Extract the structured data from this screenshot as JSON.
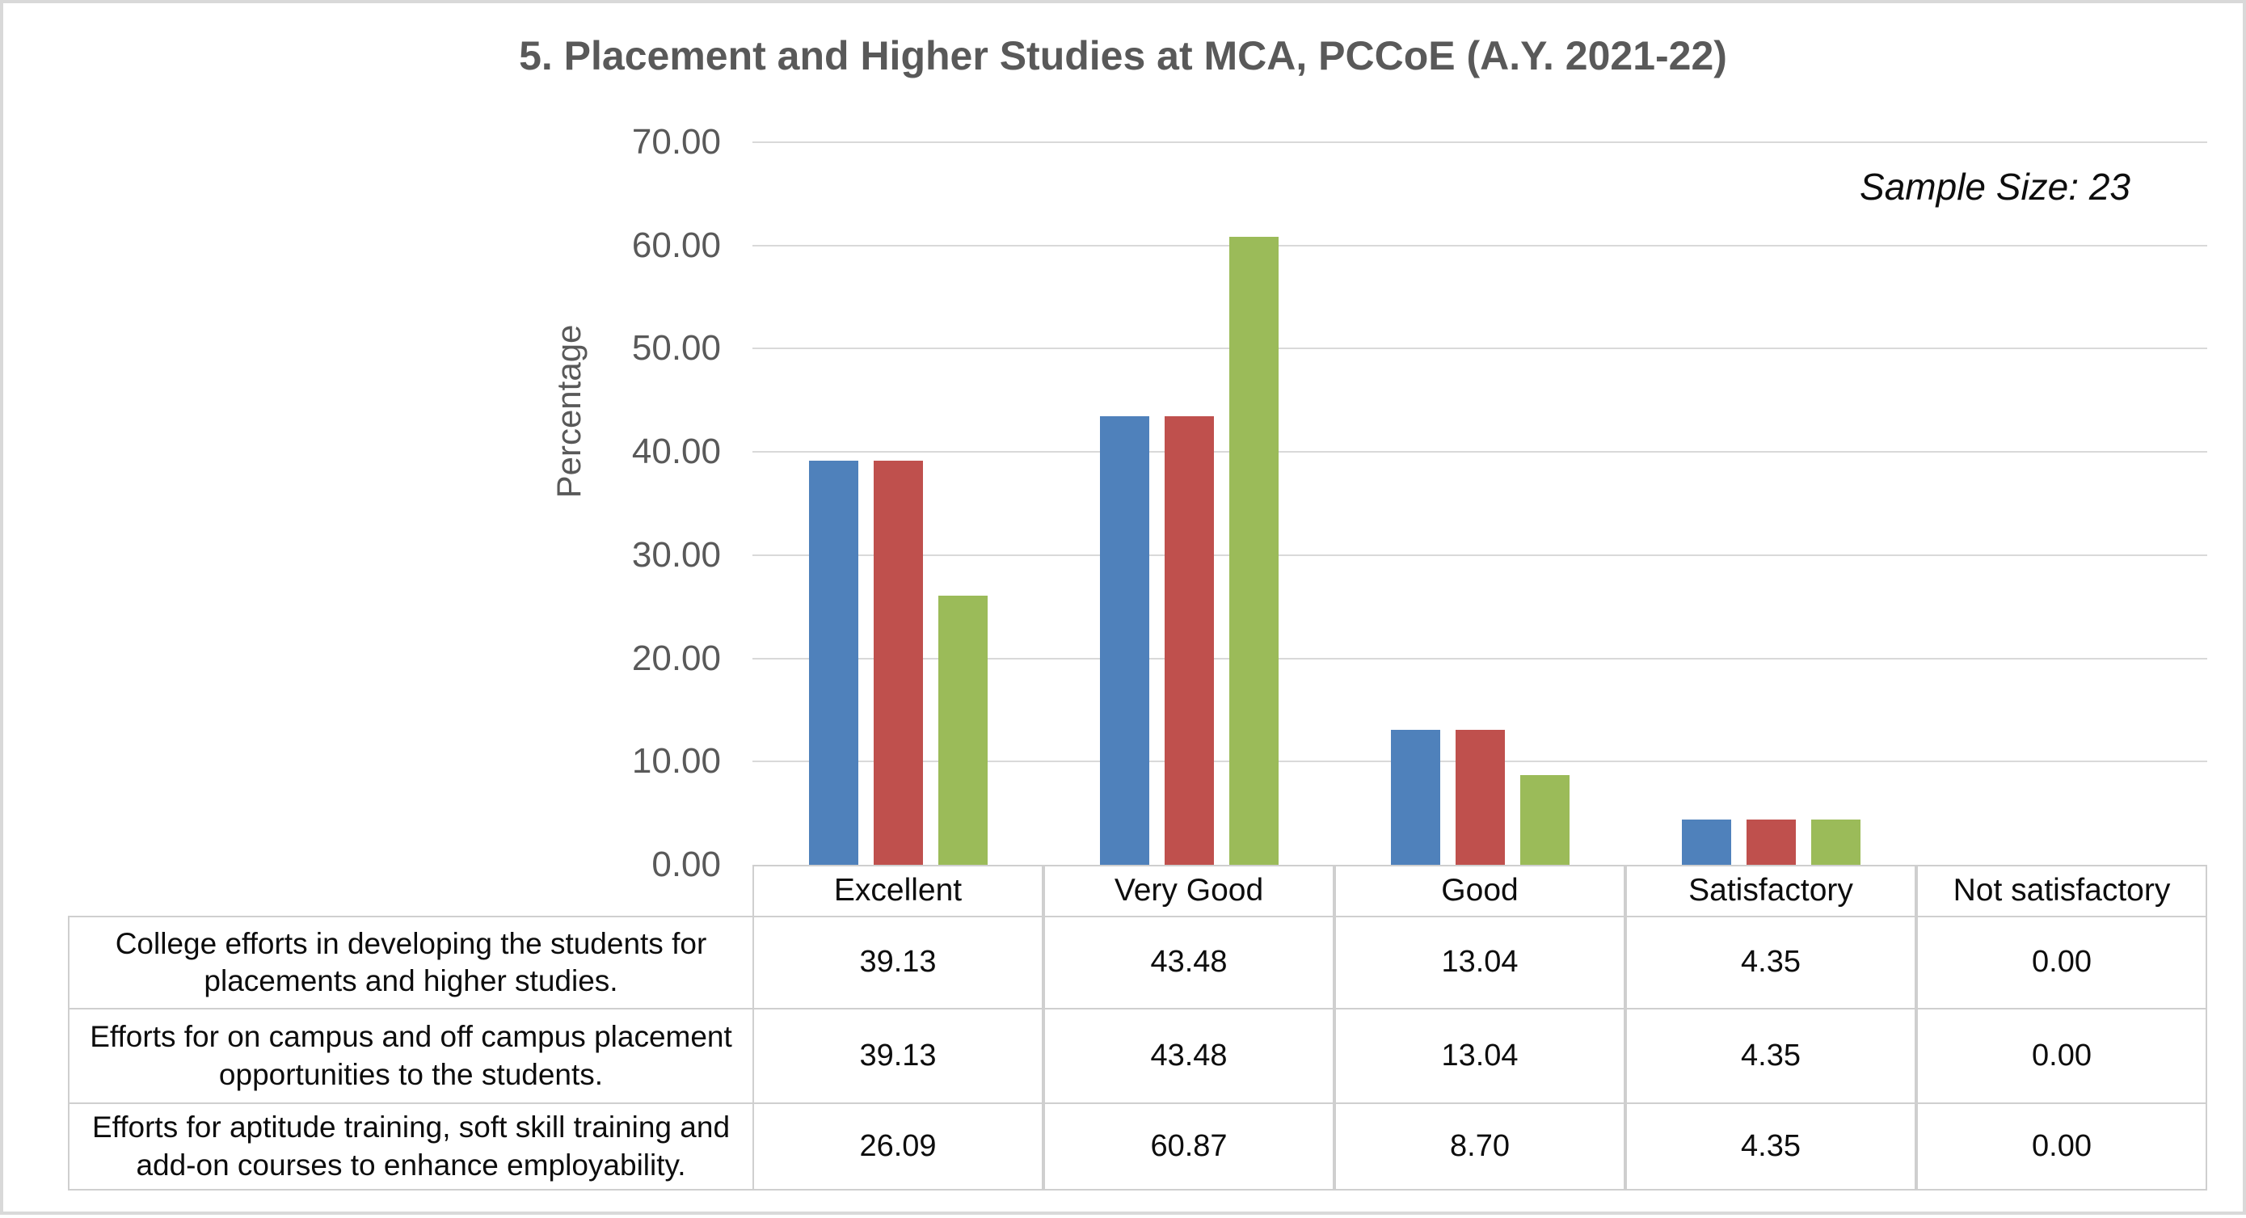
{
  "chart_data": {
    "type": "bar",
    "title": "5. Placement and Higher Studies at MCA, PCCoE (A.Y. 2021-22)",
    "annotation": "Sample Size: 23",
    "xlabel": "",
    "ylabel": "Percentage",
    "ylim": [
      0,
      70
    ],
    "ytick_step": 10,
    "ytick_format_decimals": 2,
    "grid": true,
    "gridline_color": "#d9d9d9",
    "legend_position": "none (series identified by data table rows)",
    "categories": [
      "Excellent",
      "Very Good",
      "Good",
      "Satisfactory",
      "Not satisfactory"
    ],
    "series": [
      {
        "name": "College efforts in developing the students for placements and higher studies.",
        "color": "#4f81bb",
        "values": [
          39.13,
          43.48,
          13.04,
          4.35,
          0.0
        ]
      },
      {
        "name": "Efforts for on campus and off campus placement opportunities to the students.",
        "color": "#bf504d",
        "values": [
          39.13,
          43.48,
          13.04,
          4.35,
          0.0
        ]
      },
      {
        "name": "Efforts for aptitude training, soft skill training and add-on courses to enhance employability.",
        "color": "#9bbb59",
        "values": [
          26.09,
          60.87,
          8.7,
          4.35,
          0.0
        ]
      }
    ],
    "data_table_shown": true,
    "value_display_decimals": 2
  },
  "colors": {
    "title_text": "#595959",
    "axis_text": "#595959",
    "table_text": "#0d0d0d",
    "table_border": "#cfcfcf",
    "figure_border": "#d9d9d9",
    "background": "#ffffff"
  }
}
